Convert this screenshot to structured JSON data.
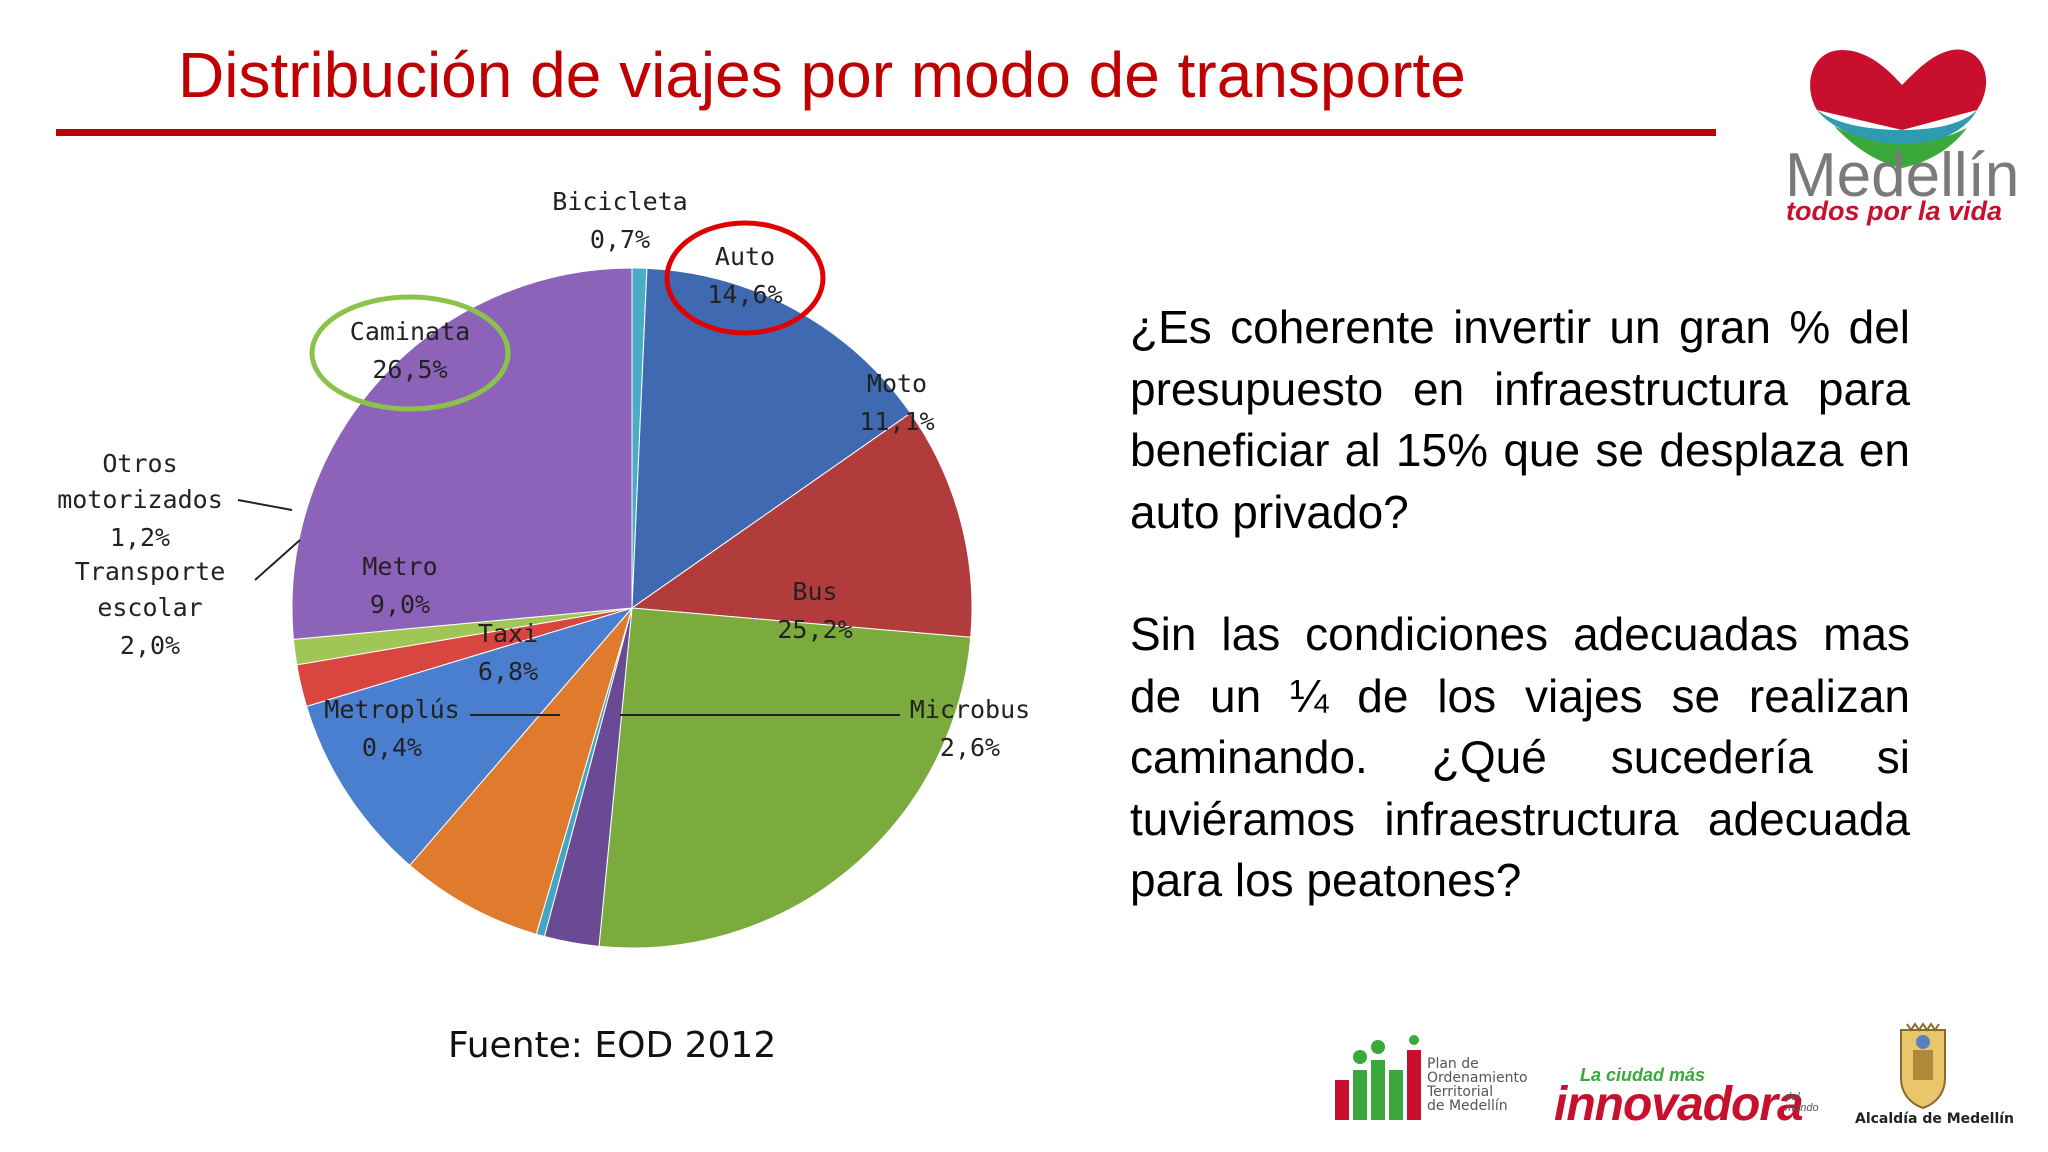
{
  "title": "Distribución de viajes por modo de transporte",
  "chart_data": {
    "type": "pie",
    "title": "",
    "slices": [
      {
        "label": "Bicicleta",
        "value": 0.7,
        "value_label": "0,7%",
        "color": "#4bacc6"
      },
      {
        "label": "Auto",
        "value": 14.6,
        "value_label": "14,6%",
        "color": "#3f6ab1"
      },
      {
        "label": "Moto",
        "value": 11.1,
        "value_label": "11,1%",
        "color": "#b23b3b"
      },
      {
        "label": "Bus",
        "value": 25.2,
        "value_label": "25,2%",
        "color": "#7bab3c"
      },
      {
        "label": "Microbus",
        "value": 2.6,
        "value_label": "2,6%",
        "color": "#6a4a94"
      },
      {
        "label": "Metroplús",
        "value": 0.4,
        "value_label": "0,4%",
        "color": "#45a6c4"
      },
      {
        "label": "Taxi",
        "value": 6.8,
        "value_label": "6,8%",
        "color": "#e07b2e"
      },
      {
        "label": "Metro",
        "value": 9.0,
        "value_label": "9,0%",
        "color": "#4a7fcf"
      },
      {
        "label": "Transporte escolar",
        "value": 2.0,
        "value_label": "2,0%",
        "color": "#d9453f"
      },
      {
        "label": "Otros motorizados",
        "value": 1.2,
        "value_label": "1,2%",
        "color": "#a0c655"
      },
      {
        "label": "Caminata",
        "value": 26.5,
        "value_label": "26,5%",
        "color": "#8d63ba"
      }
    ],
    "highlights": [
      {
        "label": "Auto",
        "color": "#e00000"
      },
      {
        "label": "Caminata",
        "color": "#8bc34a"
      }
    ]
  },
  "source": "Fuente: EOD 2012",
  "paragraphs": [
    "¿Es coherente invertir un gran % del presupuesto en infraestructura para beneficiar al 15% que se desplaza en auto privado?",
    "Sin las condiciones adecuadas mas de un ¼ de los viajes se realizan caminando. ¿Qué sucedería si tuviéramos infraestructura adecuada para los peatones?"
  ],
  "logo": {
    "name": "Medellín",
    "tagline": "todos por la vida"
  },
  "footer_logos": {
    "pot_lines": [
      "Plan de",
      "Ordenamiento",
      "Territorial",
      "de Medellín"
    ],
    "innovadora_small": "La ciudad más",
    "innovadora_big": "innovadora",
    "innovadora_suffix": [
      "del",
      "mundo"
    ],
    "alcaldia": "Alcaldía de Medellín"
  },
  "colors": {
    "title_red": "#c00000",
    "brand_red": "#c8102e",
    "brand_green": "#3aa83a"
  }
}
